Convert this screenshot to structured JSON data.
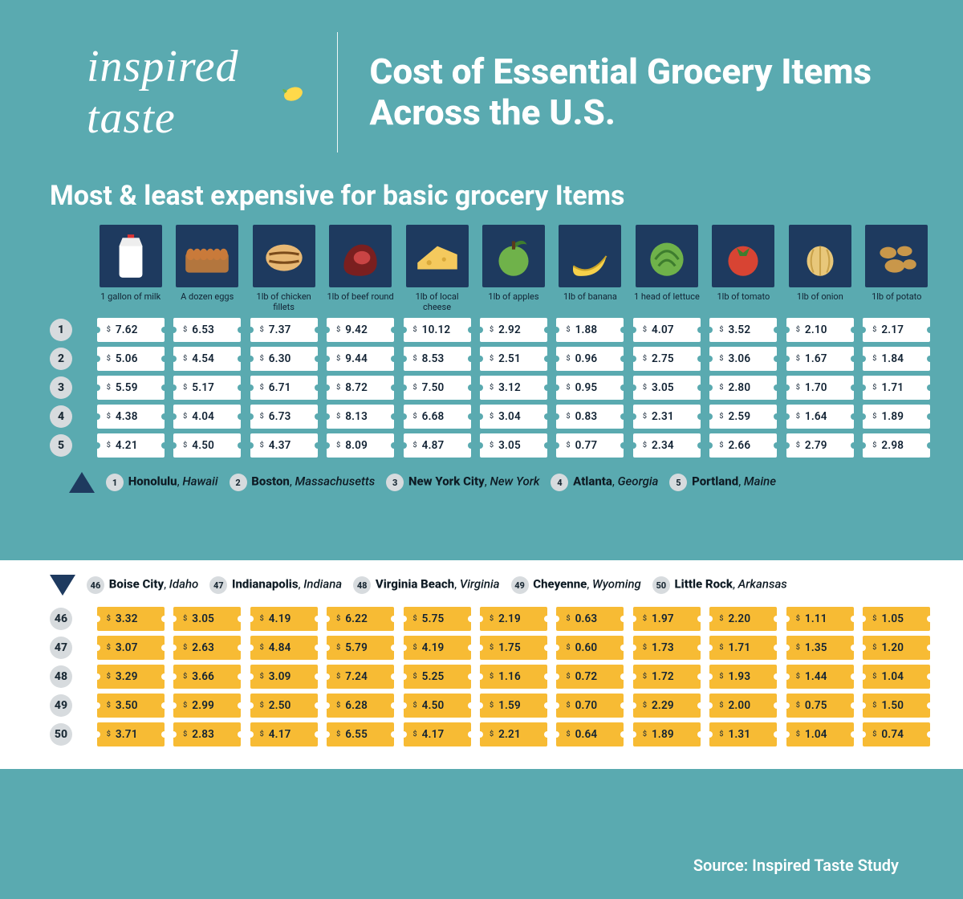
{
  "brand": "inspired taste",
  "title": "Cost of Essential Grocery Items Across the U.S.",
  "subtitle": "Most & least expensive for basic grocery Items",
  "footer": "Source: Inspired Taste Study",
  "colors": {
    "bg": "#5aaab0",
    "icon_box": "#1e3a5f",
    "tag_white": "#ffffff",
    "tag_yellow": "#f7bb34",
    "badge": "#d7dbde",
    "text_dark": "#123"
  },
  "items": [
    {
      "label": "1 gallon of milk",
      "icon": "milk"
    },
    {
      "label": "A dozen eggs",
      "icon": "eggs"
    },
    {
      "label": "1lb of chicken fillets",
      "icon": "chicken"
    },
    {
      "label": "1lb of beef round",
      "icon": "beef"
    },
    {
      "label": "1lb of local cheese",
      "icon": "cheese"
    },
    {
      "label": "1lb of apples",
      "icon": "apple"
    },
    {
      "label": "1lb of banana",
      "icon": "banana"
    },
    {
      "label": "1 head of lettuce",
      "icon": "lettuce"
    },
    {
      "label": "1lb of tomato",
      "icon": "tomato"
    },
    {
      "label": "1lb of onion",
      "icon": "onion"
    },
    {
      "label": "1lb of potato",
      "icon": "potato"
    }
  ],
  "top": {
    "ranks": [
      "1",
      "2",
      "3",
      "4",
      "5"
    ],
    "prices": [
      [
        "7.62",
        "6.53",
        "7.37",
        "9.42",
        "10.12",
        "2.92",
        "1.88",
        "4.07",
        "3.52",
        "2.10",
        "2.17"
      ],
      [
        "5.06",
        "4.54",
        "6.30",
        "9.44",
        "8.53",
        "2.51",
        "0.96",
        "2.75",
        "3.06",
        "1.67",
        "1.84"
      ],
      [
        "5.59",
        "5.17",
        "6.71",
        "8.72",
        "7.50",
        "3.12",
        "0.95",
        "3.05",
        "2.80",
        "1.70",
        "1.71"
      ],
      [
        "4.38",
        "4.04",
        "6.73",
        "8.13",
        "6.68",
        "3.04",
        "0.83",
        "2.31",
        "2.59",
        "1.64",
        "1.89"
      ],
      [
        "4.21",
        "4.50",
        "4.37",
        "8.09",
        "4.87",
        "3.05",
        "0.77",
        "2.34",
        "2.66",
        "2.79",
        "2.98"
      ]
    ],
    "cities": [
      {
        "n": "1",
        "city": "Honolulu",
        "state": "Hawaii"
      },
      {
        "n": "2",
        "city": "Boston",
        "state": "Massachusetts"
      },
      {
        "n": "3",
        "city": "New York City",
        "state": "New York"
      },
      {
        "n": "4",
        "city": "Atlanta",
        "state": "Georgia"
      },
      {
        "n": "5",
        "city": "Portland",
        "state": "Maine"
      }
    ]
  },
  "bottom": {
    "ranks": [
      "46",
      "47",
      "48",
      "49",
      "50"
    ],
    "prices": [
      [
        "3.32",
        "3.05",
        "4.19",
        "6.22",
        "5.75",
        "2.19",
        "0.63",
        "1.97",
        "2.20",
        "1.11",
        "1.05"
      ],
      [
        "3.07",
        "2.63",
        "4.84",
        "5.79",
        "4.19",
        "1.75",
        "0.60",
        "1.73",
        "1.71",
        "1.35",
        "1.20"
      ],
      [
        "3.29",
        "3.66",
        "3.09",
        "7.24",
        "5.25",
        "1.16",
        "0.72",
        "1.72",
        "1.93",
        "1.44",
        "1.04"
      ],
      [
        "3.50",
        "2.99",
        "2.50",
        "6.28",
        "4.50",
        "1.59",
        "0.70",
        "2.29",
        "2.00",
        "0.75",
        "1.50"
      ],
      [
        "3.71",
        "2.83",
        "4.17",
        "6.55",
        "4.17",
        "2.21",
        "0.64",
        "1.89",
        "1.31",
        "1.04",
        "0.74"
      ]
    ],
    "cities": [
      {
        "n": "46",
        "city": "Boise City",
        "state": "Idaho"
      },
      {
        "n": "47",
        "city": "Indianapolis",
        "state": "Indiana"
      },
      {
        "n": "48",
        "city": "Virginia Beach",
        "state": "Virginia"
      },
      {
        "n": "49",
        "city": "Cheyenne",
        "state": "Wyoming"
      },
      {
        "n": "50",
        "city": "Little Rock",
        "state": "Arkansas"
      }
    ]
  }
}
